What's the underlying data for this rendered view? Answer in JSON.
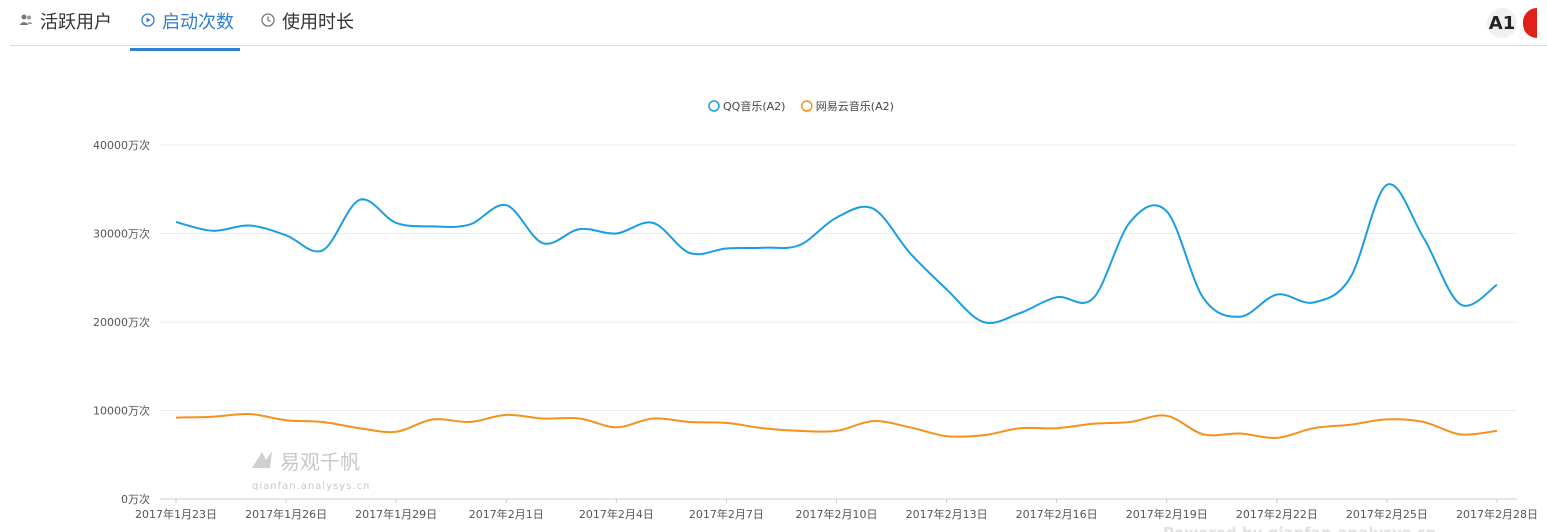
{
  "tabs": [
    {
      "label": "活跃用户",
      "icon": "users-icon",
      "active": false
    },
    {
      "label": "启动次数",
      "icon": "play-circle-icon",
      "active": true
    },
    {
      "label": "使用时长",
      "icon": "clock-icon",
      "active": false
    }
  ],
  "badge": {
    "label": "A1"
  },
  "watermark": {
    "title": "易观千帆",
    "subtitle": "qianfan.analysys.cn"
  },
  "footer": {
    "powered": "Powered by qianfan.analysys.cn"
  },
  "colors": {
    "accent": "#2f80d1",
    "series1": "#1a9ee2",
    "series2": "#f5921e"
  },
  "chart_data": {
    "type": "line",
    "y_ticks": [
      "0万次",
      "10000万次",
      "20000万次",
      "30000万次",
      "40000万次"
    ],
    "ylim": [
      0,
      40000
    ],
    "x_tick_labels": [
      "2017年1月23日",
      "2017年1月26日",
      "2017年1月29日",
      "2017年2月1日",
      "2017年2月4日",
      "2017年2月7日",
      "2017年2月10日",
      "2017年2月13日",
      "2017年2月16日",
      "2017年2月19日",
      "2017年2月22日",
      "2017年2月25日",
      "2017年2月28日"
    ],
    "x": [
      "2017-01-23",
      "2017-01-24",
      "2017-01-25",
      "2017-01-26",
      "2017-01-27",
      "2017-01-28",
      "2017-01-29",
      "2017-01-30",
      "2017-01-31",
      "2017-02-01",
      "2017-02-02",
      "2017-02-03",
      "2017-02-04",
      "2017-02-05",
      "2017-02-06",
      "2017-02-07",
      "2017-02-08",
      "2017-02-09",
      "2017-02-10",
      "2017-02-11",
      "2017-02-12",
      "2017-02-13",
      "2017-02-14",
      "2017-02-15",
      "2017-02-16",
      "2017-02-17",
      "2017-02-18",
      "2017-02-19",
      "2017-02-20",
      "2017-02-21",
      "2017-02-22",
      "2017-02-23",
      "2017-02-24",
      "2017-02-25",
      "2017-02-26",
      "2017-02-27",
      "2017-02-28"
    ],
    "series": [
      {
        "name": "QQ音乐(A2)",
        "color": "#1a9ee2",
        "values": [
          31300,
          30300,
          30900,
          29800,
          28100,
          33800,
          31200,
          30800,
          31000,
          33200,
          28900,
          30500,
          30000,
          31200,
          27800,
          28300,
          28400,
          28700,
          31800,
          32800,
          27800,
          23700,
          20000,
          21000,
          22800,
          22700,
          31300,
          32500,
          22700,
          20600,
          23100,
          22200,
          25000,
          35500,
          29500,
          22000,
          24200
        ]
      },
      {
        "name": "网易云音乐(A2)",
        "color": "#f5921e",
        "values": [
          9200,
          9300,
          9600,
          8900,
          8700,
          8000,
          7600,
          9000,
          8700,
          9500,
          9100,
          9100,
          8100,
          9100,
          8700,
          8600,
          8000,
          7700,
          7700,
          8800,
          8100,
          7100,
          7200,
          8000,
          8000,
          8500,
          8700,
          9400,
          7300,
          7400,
          6900,
          8000,
          8400,
          9000,
          8700,
          7300,
          7700
        ]
      }
    ],
    "legend": "top-center",
    "grid": true
  }
}
